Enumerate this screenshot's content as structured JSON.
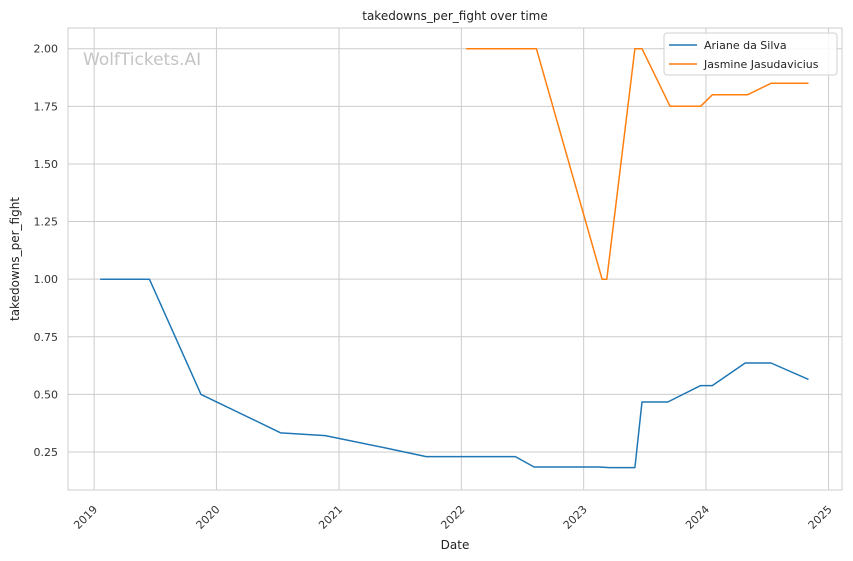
{
  "chart_data": {
    "type": "line",
    "title": "takedowns_per_fight over time",
    "xlabel": "Date",
    "ylabel": "takedowns_per_fight",
    "watermark": "WolfTickets.AI",
    "xlim": [
      "2018-10-15",
      "2025-02-10"
    ],
    "ylim": [
      0.085,
      2.09
    ],
    "x_ticks": [
      "2019",
      "2020",
      "2021",
      "2022",
      "2023",
      "2024",
      "2025"
    ],
    "y_ticks": [
      "0.25",
      "0.50",
      "0.75",
      "1.00",
      "1.25",
      "1.50",
      "1.75",
      "2.00"
    ],
    "grid": true,
    "legend_position": "top-right",
    "series": [
      {
        "name": "Ariane da Silva",
        "color": "#1f77b4",
        "points": [
          [
            "2019-01-19",
            1.0
          ],
          [
            "2019-06-15",
            1.0
          ],
          [
            "2019-11-16",
            0.5
          ],
          [
            "2020-07-11",
            0.333
          ],
          [
            "2020-11-21",
            0.321
          ],
          [
            "2021-05-22",
            0.267
          ],
          [
            "2021-09-18",
            0.23
          ],
          [
            "2022-06-11",
            0.23
          ],
          [
            "2022-08-06",
            0.185
          ],
          [
            "2023-02-18",
            0.185
          ],
          [
            "2023-03-18",
            0.182
          ],
          [
            "2023-06-03",
            0.182
          ],
          [
            "2023-06-24",
            0.467
          ],
          [
            "2023-09-09",
            0.467
          ],
          [
            "2023-12-16",
            0.538
          ],
          [
            "2024-01-20",
            0.538
          ],
          [
            "2024-04-27",
            0.636
          ],
          [
            "2024-07-13",
            0.636
          ],
          [
            "2024-11-02",
            0.565
          ]
        ]
      },
      {
        "name": "Jasmine Jasudavicius",
        "color": "#ff7f0e",
        "points": [
          [
            "2022-01-15",
            2.0
          ],
          [
            "2022-08-13",
            2.0
          ],
          [
            "2023-02-25",
            1.0
          ],
          [
            "2023-03-11",
            1.0
          ],
          [
            "2023-06-03",
            2.0
          ],
          [
            "2023-06-24",
            2.0
          ],
          [
            "2023-09-16",
            1.75
          ],
          [
            "2023-12-16",
            1.75
          ],
          [
            "2024-01-20",
            1.8
          ],
          [
            "2024-05-04",
            1.8
          ],
          [
            "2024-07-13",
            1.85
          ],
          [
            "2024-11-02",
            1.85
          ]
        ]
      }
    ]
  }
}
